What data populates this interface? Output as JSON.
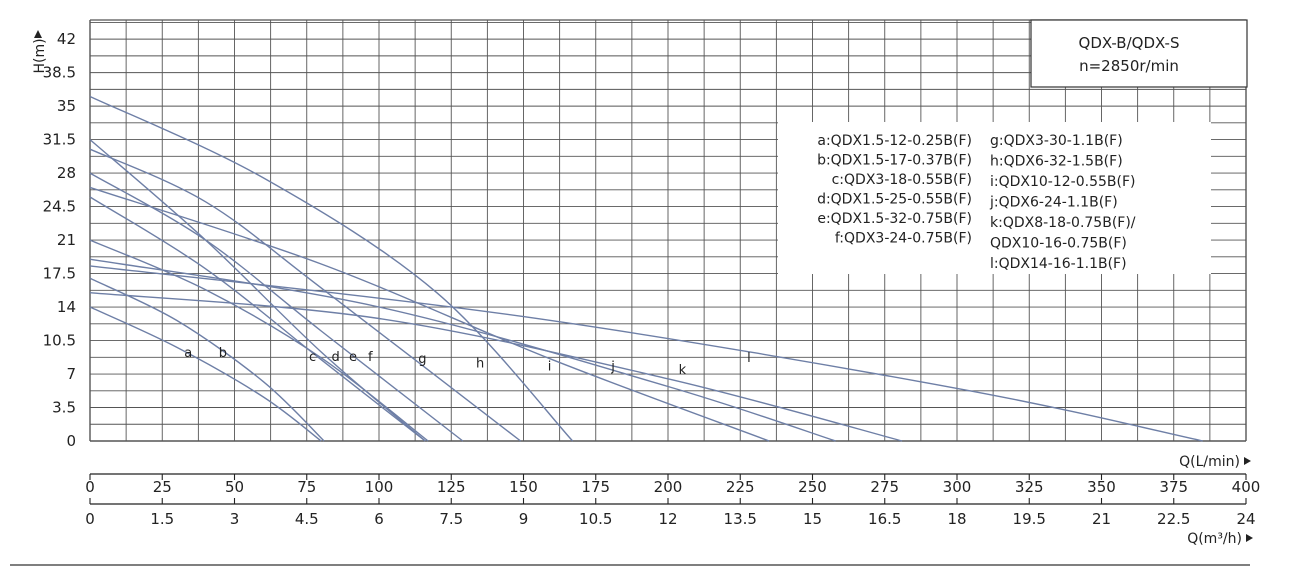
{
  "chart_data": {
    "type": "line",
    "title_box": [
      "QDX-B/QDX-S",
      "n=2850r/min"
    ],
    "ylabel": "H(m)",
    "y_ticks": [
      0,
      3.5,
      7,
      10.5,
      14,
      17.5,
      21,
      24.5,
      28,
      31.5,
      35,
      38.5,
      42
    ],
    "ylim": [
      0,
      44
    ],
    "xlabel_lmin": "Q(L/min)",
    "x_ticks_lmin": [
      0,
      25,
      50,
      75,
      100,
      125,
      150,
      175,
      200,
      225,
      250,
      275,
      300,
      325,
      350,
      375,
      400
    ],
    "xlabel_m3h": "Q(m³/h)",
    "x_ticks_m3h": [
      "0",
      "1.5",
      "3",
      "4.5",
      "6",
      "7.5",
      "9",
      "10.5",
      "12",
      "13.5",
      "15",
      "16.5",
      "18",
      "19.5",
      "21",
      "22.5",
      "24"
    ],
    "xlim_lmin": [
      0,
      400
    ],
    "grid": true,
    "legend_left": [
      "a:QDX1.5-12-0.25B(F)",
      "b:QDX1.5-17-0.37B(F)",
      "c:QDX3-18-0.55B(F)",
      "d:QDX1.5-25-0.55B(F)",
      "e:QDX1.5-32-0.75B(F)",
      "f:QDX3-24-0.75B(F)"
    ],
    "legend_right": [
      "g:QDX3-30-1.1B(F)",
      "h:QDX6-32-1.5B(F)",
      "i:QDX10-12-0.55B(F)",
      "j:QDX6-24-1.1B(F)",
      "k:QDX8-18-0.75B(F)/",
      "QDX10-16-0.75B(F)",
      "l:QDX14-16-1.1B(F)"
    ],
    "series": [
      {
        "name": "a",
        "label_at": [
          34,
          9.3
        ],
        "points": [
          [
            0,
            14
          ],
          [
            30,
            9.8
          ],
          [
            60,
            4.6
          ],
          [
            80,
            0
          ]
        ]
      },
      {
        "name": "b",
        "label_at": [
          46,
          9.3
        ],
        "points": [
          [
            0,
            17
          ],
          [
            30,
            12.6
          ],
          [
            60,
            6.2
          ],
          [
            81,
            0
          ]
        ]
      },
      {
        "name": "c",
        "label_at": [
          77,
          8.9
        ],
        "points": [
          [
            0,
            21
          ],
          [
            40,
            15.8
          ],
          [
            80,
            8.7
          ],
          [
            117,
            0
          ]
        ]
      },
      {
        "name": "d",
        "label_at": [
          85,
          8.9
        ],
        "points": [
          [
            0,
            25.5
          ],
          [
            40,
            18
          ],
          [
            80,
            8.5
          ],
          [
            116,
            0
          ]
        ]
      },
      {
        "name": "e",
        "label_at": [
          91,
          8.9
        ],
        "points": [
          [
            0,
            31.5
          ],
          [
            40,
            21
          ],
          [
            80,
            9.3
          ],
          [
            116,
            0
          ]
        ]
      },
      {
        "name": "f",
        "label_at": [
          97,
          8.9
        ],
        "points": [
          [
            0,
            28
          ],
          [
            40,
            21
          ],
          [
            80,
            11.5
          ],
          [
            129,
            0
          ]
        ]
      },
      {
        "name": "g",
        "label_at": [
          115,
          8.7
        ],
        "points": [
          [
            0,
            30.5
          ],
          [
            40,
            25
          ],
          [
            80,
            16
          ],
          [
            149,
            0
          ]
        ]
      },
      {
        "name": "h",
        "label_at": [
          135,
          8.2
        ],
        "points": [
          [
            0,
            36
          ],
          [
            60,
            27.5
          ],
          [
            120,
            15.5
          ],
          [
            167,
            0
          ]
        ]
      },
      {
        "name": "i",
        "label_at": [
          159,
          7.9
        ],
        "points": [
          [
            0,
            15.5
          ],
          [
            100,
            12.8
          ],
          [
            200,
            6.5
          ],
          [
            281,
            0
          ]
        ]
      },
      {
        "name": "j",
        "label_at": [
          181,
          7.9
        ],
        "points": [
          [
            0,
            26.5
          ],
          [
            80,
            18.5
          ],
          [
            160,
            8.5
          ],
          [
            235,
            0
          ]
        ]
      },
      {
        "name": "k",
        "label_at": [
          205,
          7.5
        ],
        "points": [
          [
            0,
            19
          ],
          [
            100,
            14
          ],
          [
            200,
            5.7
          ],
          [
            258,
            0
          ]
        ]
      },
      {
        "name": "l",
        "label_at": [
          228,
          8.8
        ],
        "points": [
          [
            0,
            18.3
          ],
          [
            150,
            13
          ],
          [
            300,
            5.5
          ],
          [
            385,
            0
          ]
        ]
      }
    ]
  }
}
